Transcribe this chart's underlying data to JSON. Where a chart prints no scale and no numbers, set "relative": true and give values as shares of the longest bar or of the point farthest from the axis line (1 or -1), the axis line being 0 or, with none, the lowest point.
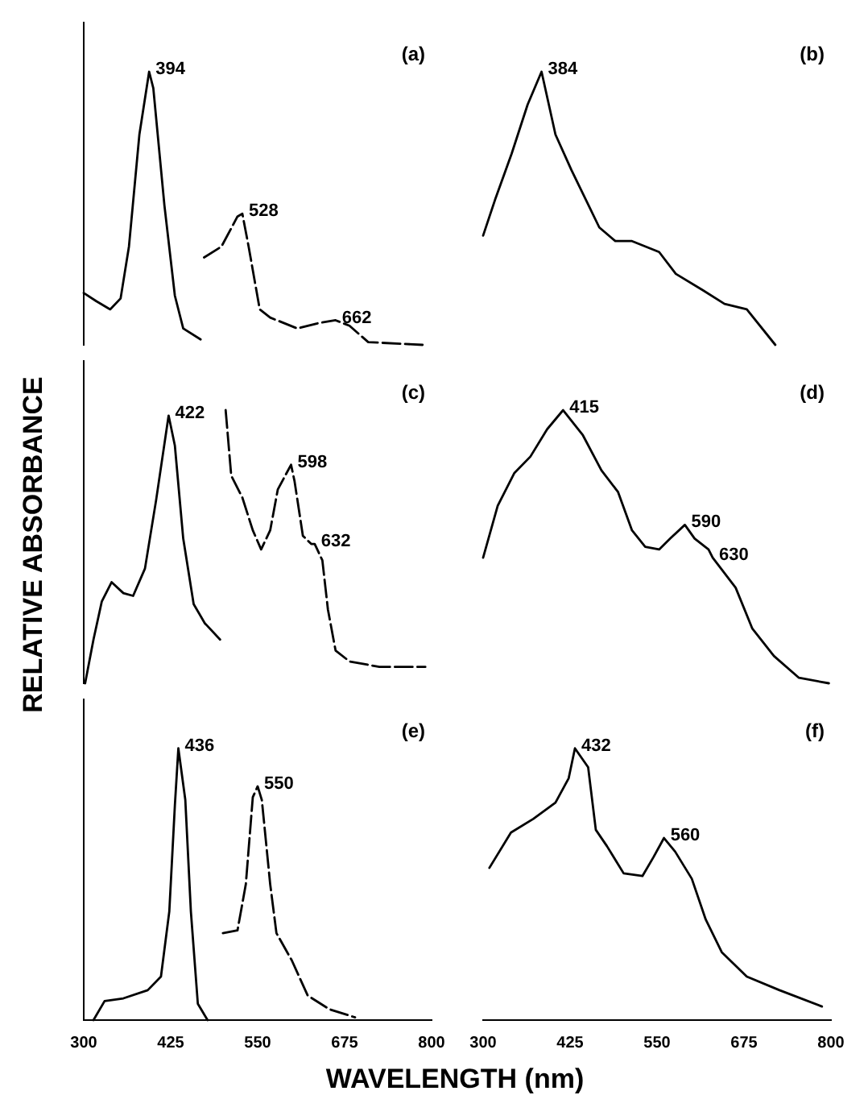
{
  "chart_data": [
    {
      "type": "line",
      "relative": true,
      "xlim": [
        300,
        800
      ],
      "tick_labels": false,
      "marker": "none",
      "series": [
        {
          "color": "#000000",
          "line_style": "solid",
          "x": [
            300,
            318,
            338,
            353,
            365,
            380,
            394,
            400,
            416,
            431,
            443,
            468
          ],
          "values": [
            0.19,
            0.16,
            0.13,
            0.17,
            0.36,
            0.77,
            1.0,
            0.94,
            0.51,
            0.18,
            0.06,
            0.02
          ]
        },
        {
          "color": "#000000",
          "line_style": "dashed",
          "x": [
            473,
            498,
            521,
            528,
            537,
            553,
            568,
            607,
            638,
            662,
            682,
            709,
            787
          ],
          "values": [
            0.32,
            0.36,
            0.47,
            0.48,
            0.36,
            0.13,
            0.1,
            0.06,
            0.08,
            0.09,
            0.07,
            0.01,
            0
          ]
        }
      ],
      "annotations": [
        {
          "text": "394",
          "x": 394,
          "y": 1.0
        },
        {
          "text": "528",
          "x": 528,
          "y": 0.48
        },
        {
          "text": "662",
          "x": 662,
          "y": 0.09
        },
        "(a)"
      ]
    },
    {
      "type": "line",
      "relative": true,
      "xlim": [
        300,
        800
      ],
      "tick_labels": false,
      "marker": "none",
      "series": [
        {
          "color": "#000000",
          "line_style": "solid",
          "x": [
            300,
            317,
            341,
            364,
            384,
            404,
            427,
            467,
            490,
            514,
            553,
            577,
            616,
            647,
            679,
            720
          ],
          "values": [
            0.4,
            0.53,
            0.7,
            0.88,
            1.0,
            0.77,
            0.64,
            0.43,
            0.38,
            0.38,
            0.34,
            0.26,
            0.2,
            0.15,
            0.13,
            0.0
          ]
        }
      ],
      "annotations": [
        {
          "text": "384",
          "x": 384,
          "y": 1.0
        },
        "(b)"
      ]
    },
    {
      "type": "line",
      "relative": true,
      "xlim": [
        300,
        800
      ],
      "tick_labels": false,
      "marker": "none",
      "ylabel": "RELATIVE ABSORBANCE",
      "series": [
        {
          "color": "#000000",
          "line_style": "solid",
          "x": [
            302,
            314,
            326,
            340,
            357,
            371,
            388,
            404,
            422,
            431,
            443,
            458,
            474,
            496
          ],
          "values": [
            0,
            0.16,
            0.3,
            0.37,
            0.33,
            0.32,
            0.42,
            0.67,
            0.98,
            0.87,
            0.53,
            0.29,
            0.22,
            0.16
          ]
        },
        {
          "color": "#000000",
          "line_style": "dashed",
          "x": [
            504,
            512,
            528,
            543,
            555,
            568,
            579,
            598,
            603,
            615,
            627,
            632,
            643,
            651,
            662,
            682,
            725,
            791
          ],
          "values": [
            1.0,
            0.76,
            0.68,
            0.56,
            0.49,
            0.56,
            0.71,
            0.8,
            0.74,
            0.54,
            0.51,
            0.51,
            0.45,
            0.27,
            0.12,
            0.08,
            0.06,
            0.06
          ]
        }
      ],
      "annotations": [
        {
          "text": "422",
          "x": 422,
          "y": 0.98
        },
        {
          "text": "598",
          "x": 598,
          "y": 0.8
        },
        {
          "text": "632",
          "x": 632,
          "y": 0.51
        },
        "(c)"
      ]
    },
    {
      "type": "line",
      "relative": true,
      "xlim": [
        300,
        800
      ],
      "tick_labels": false,
      "marker": "none",
      "series": [
        {
          "color": "#000000",
          "line_style": "solid",
          "x": [
            300,
            321,
            345,
            368,
            392,
            415,
            443,
            470,
            494,
            514,
            533,
            553,
            569,
            590,
            604,
            624,
            630,
            663,
            687,
            718,
            754,
            797
          ],
          "values": [
            0.46,
            0.65,
            0.77,
            0.83,
            0.93,
            1.0,
            0.91,
            0.78,
            0.7,
            0.56,
            0.5,
            0.49,
            0.53,
            0.58,
            0.53,
            0.49,
            0.46,
            0.35,
            0.2,
            0.1,
            0.02,
            0
          ]
        }
      ],
      "annotations": [
        {
          "text": "415",
          "x": 415,
          "y": 1.0
        },
        {
          "text": "590",
          "x": 590,
          "y": 0.58
        },
        {
          "text": "630",
          "x": 630,
          "y": 0.46
        },
        "(d)"
      ]
    },
    {
      "type": "line",
      "relative": true,
      "xlim": [
        300,
        800
      ],
      "xticks": [
        300,
        425,
        550,
        675,
        800
      ],
      "tick_labels": "x",
      "marker": "none",
      "xlabel": "WAVELENGTH (nm)",
      "series": [
        {
          "color": "#000000",
          "line_style": "solid",
          "x": [
            314,
            330,
            357,
            392,
            411,
            423,
            431,
            436,
            446,
            454,
            464,
            478
          ],
          "values": [
            0,
            0.07,
            0.08,
            0.11,
            0.16,
            0.4,
            0.79,
            1.0,
            0.81,
            0.4,
            0.06,
            0
          ]
        },
        {
          "color": "#000000",
          "line_style": "dashed",
          "x": [
            500,
            521,
            533,
            543,
            550,
            556,
            568,
            577,
            599,
            622,
            653,
            690
          ],
          "values": [
            0.32,
            0.33,
            0.5,
            0.82,
            0.86,
            0.81,
            0.5,
            0.32,
            0.22,
            0.09,
            0.04,
            0.01
          ]
        }
      ],
      "annotations": [
        {
          "text": "436",
          "x": 436,
          "y": 1.0
        },
        {
          "text": "550",
          "x": 550,
          "y": 0.86
        },
        "(e)"
      ]
    },
    {
      "type": "line",
      "relative": true,
      "xlim": [
        300,
        800
      ],
      "xticks": [
        300,
        425,
        550,
        675,
        800
      ],
      "tick_labels": "x",
      "marker": "none",
      "series": [
        {
          "color": "#000000",
          "line_style": "solid",
          "x": [
            309,
            340,
            372,
            404,
            423,
            432,
            451,
            462,
            478,
            502,
            529,
            545,
            560,
            576,
            600,
            620,
            643,
            679,
            726,
            787
          ],
          "values": [
            0.56,
            0.69,
            0.74,
            0.8,
            0.89,
            1.0,
            0.93,
            0.7,
            0.64,
            0.54,
            0.53,
            0.6,
            0.67,
            0.62,
            0.52,
            0.37,
            0.25,
            0.16,
            0.11,
            0.05
          ]
        }
      ],
      "annotations": [
        {
          "text": "432",
          "x": 432,
          "y": 1.0
        },
        {
          "text": "560",
          "x": 560,
          "y": 0.67
        },
        "(f)"
      ]
    }
  ]
}
